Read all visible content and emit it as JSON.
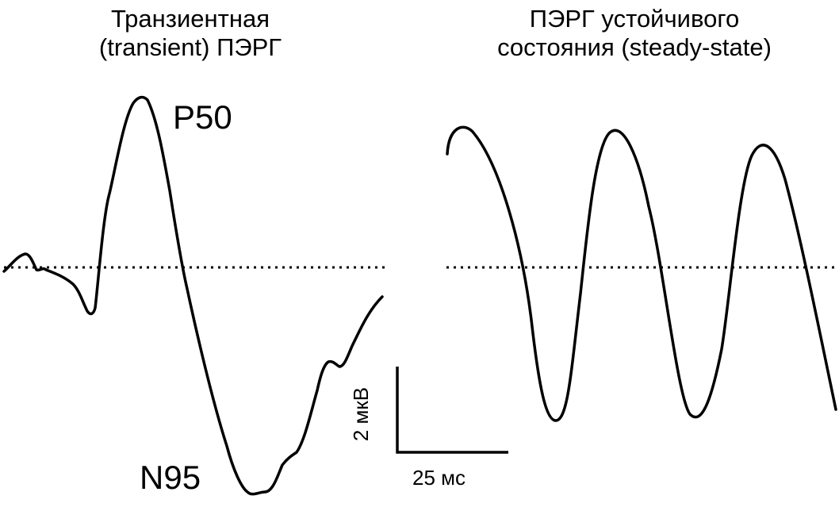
{
  "panels": {
    "left": {
      "title_line1": "Транзиентная",
      "title_line2": "(transient) ПЭРГ",
      "peak_positive": "P50",
      "peak_negative": "N95"
    },
    "right": {
      "title_line1": "ПЭРГ устойчивого",
      "title_line2": "состояния (steady-state)"
    }
  },
  "scale_bar": {
    "amplitude_label": "2 мкВ",
    "time_label": "25 мс"
  },
  "colors": {
    "trace": "#000000",
    "background": "#ffffff"
  }
}
